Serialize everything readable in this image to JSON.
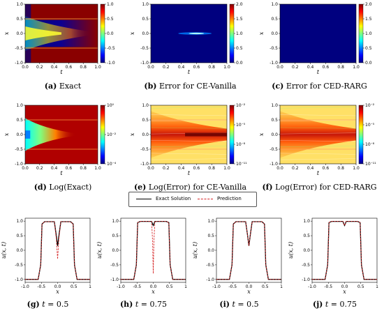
{
  "colormaps": {
    "jet": [
      "#00007f",
      "#0000ff",
      "#007fff",
      "#00ffff",
      "#7fff7f",
      "#ffff00",
      "#ff7f00",
      "#ff0000",
      "#7f0000"
    ],
    "error_low": "#3b0f70",
    "bg_dark_red": "#a00000"
  },
  "panels": [
    {
      "id": "a",
      "caption_letter": "(a)",
      "caption_text": "Exact",
      "cbar_ticks": [
        "1.0",
        "0.5",
        "0.0",
        "-0.5",
        "-1.0"
      ]
    },
    {
      "id": "b",
      "caption_letter": "(b)",
      "caption_text": "Error for CE-Vanilla",
      "cbar_ticks": [
        "2.0",
        "1.5",
        "1.0",
        "0.5",
        "0.0"
      ]
    },
    {
      "id": "c",
      "caption_letter": "(c)",
      "caption_text": "Error for CED-RARG",
      "cbar_ticks": [
        "2.0",
        "1.5",
        "1.0",
        "0.5",
        "0.0"
      ]
    },
    {
      "id": "d",
      "caption_letter": "(d)",
      "caption_text": "Log(Exact)",
      "cbar_ticks": [
        "10⁰",
        "10⁻²",
        "10⁻⁴"
      ]
    },
    {
      "id": "e",
      "caption_letter": "(e)",
      "caption_text": "Log(Error) for CE-Vanilla",
      "cbar_ticks": [
        "10⁻²",
        "10⁻⁵",
        "10⁻⁸",
        "10⁻¹¹"
      ]
    },
    {
      "id": "f",
      "caption_letter": "(f)",
      "caption_text": "Log(Error) for CED-RARG",
      "cbar_ticks": [
        "10⁻²",
        "10⁻⁵",
        "10⁻⁸",
        "10⁻¹¹"
      ]
    }
  ],
  "heat_axes": {
    "xlabel": "t",
    "ylabel": "x",
    "xticks": [
      "0.0",
      "0.2",
      "0.4",
      "0.6",
      "0.8",
      "1.0"
    ],
    "yticks": [
      "1.0",
      "0.5",
      "0.0",
      "-0.5",
      "-1.0"
    ]
  },
  "legend": {
    "exact": "Exact Solution",
    "prediction": "Prediction",
    "exact_color": "#000000",
    "pred_color": "#d62728"
  },
  "line_axes": {
    "xlabel": "x",
    "ylabel": "u(x, t)",
    "xticks": [
      "-1.0",
      "-0.5",
      "0.0",
      "0.5",
      "1"
    ],
    "yticks": [
      "1.0",
      "0.5",
      "0.0",
      "-0.5",
      "-1.0"
    ]
  },
  "chart_data": [
    {
      "type": "line",
      "caption": "(g) t = 0.5",
      "xlim": [
        -1,
        1
      ],
      "ylim": [
        -1.1,
        1.1
      ],
      "series": [
        {
          "name": "Exact Solution",
          "x": [
            -1,
            -0.6,
            -0.52,
            -0.48,
            -0.4,
            -0.1,
            -0.04,
            0,
            0.04,
            0.1,
            0.4,
            0.48,
            0.52,
            0.6,
            1
          ],
          "values": [
            -1,
            -1,
            -0.5,
            0.9,
            0.98,
            0.98,
            0.5,
            0.15,
            0.5,
            0.98,
            0.98,
            0.9,
            -0.5,
            -1,
            -1
          ]
        },
        {
          "name": "Prediction",
          "x": [
            -1,
            -0.6,
            -0.52,
            -0.48,
            -0.4,
            -0.1,
            -0.04,
            0,
            0.04,
            0.1,
            0.4,
            0.48,
            0.52,
            0.6,
            1
          ],
          "values": [
            -1,
            -1,
            -0.5,
            0.9,
            0.98,
            0.98,
            0.4,
            -0.3,
            0.4,
            0.98,
            0.98,
            0.9,
            -0.5,
            -1,
            -1
          ]
        }
      ]
    },
    {
      "type": "line",
      "caption": "(h) t = 0.75",
      "xlim": [
        -1,
        1
      ],
      "ylim": [
        -1.1,
        1.1
      ],
      "series": [
        {
          "name": "Exact Solution",
          "x": [
            -1,
            -0.6,
            -0.52,
            -0.48,
            -0.4,
            -0.05,
            -0.02,
            0,
            0.02,
            0.05,
            0.4,
            0.48,
            0.52,
            0.6,
            1
          ],
          "values": [
            -1,
            -1,
            -0.5,
            0.95,
            0.99,
            0.99,
            0.9,
            0.85,
            0.9,
            0.99,
            0.99,
            0.95,
            -0.5,
            -1,
            -1
          ]
        },
        {
          "name": "Prediction",
          "x": [
            -1,
            -0.6,
            -0.52,
            -0.48,
            -0.4,
            -0.05,
            -0.02,
            0,
            0.02,
            0.05,
            0.4,
            0.48,
            0.52,
            0.6,
            1
          ],
          "values": [
            -1,
            -1,
            -0.5,
            0.95,
            0.99,
            0.99,
            0.3,
            -0.8,
            0.3,
            0.99,
            0.99,
            0.95,
            -0.5,
            -1,
            -1
          ]
        }
      ]
    },
    {
      "type": "line",
      "caption": "(i) t = 0.5",
      "xlim": [
        -1,
        1
      ],
      "ylim": [
        -1.1,
        1.1
      ],
      "series": [
        {
          "name": "Exact Solution",
          "x": [
            -1,
            -0.6,
            -0.52,
            -0.48,
            -0.4,
            -0.1,
            -0.04,
            0,
            0.04,
            0.1,
            0.4,
            0.48,
            0.52,
            0.6,
            1
          ],
          "values": [
            -1,
            -1,
            -0.5,
            0.9,
            0.98,
            0.98,
            0.5,
            0.15,
            0.5,
            0.98,
            0.98,
            0.9,
            -0.5,
            -1,
            -1
          ]
        },
        {
          "name": "Prediction",
          "x": [
            -1,
            -0.6,
            -0.52,
            -0.48,
            -0.4,
            -0.1,
            -0.04,
            0,
            0.04,
            0.1,
            0.4,
            0.48,
            0.52,
            0.6,
            1
          ],
          "values": [
            -1,
            -1,
            -0.5,
            0.9,
            0.98,
            0.98,
            0.5,
            0.15,
            0.5,
            0.98,
            0.98,
            0.9,
            -0.5,
            -1,
            -1
          ]
        }
      ]
    },
    {
      "type": "line",
      "caption": "(j) t = 0.75",
      "xlim": [
        -1,
        1
      ],
      "ylim": [
        -1.1,
        1.1
      ],
      "series": [
        {
          "name": "Exact Solution",
          "x": [
            -1,
            -0.6,
            -0.52,
            -0.48,
            -0.4,
            -0.05,
            -0.02,
            0,
            0.02,
            0.05,
            0.4,
            0.48,
            0.52,
            0.6,
            1
          ],
          "values": [
            -1,
            -1,
            -0.5,
            0.95,
            0.99,
            0.99,
            0.9,
            0.85,
            0.9,
            0.99,
            0.99,
            0.95,
            -0.5,
            -1,
            -1
          ]
        },
        {
          "name": "Prediction",
          "x": [
            -1,
            -0.6,
            -0.52,
            -0.48,
            -0.4,
            -0.05,
            -0.02,
            0,
            0.02,
            0.05,
            0.4,
            0.48,
            0.52,
            0.6,
            1
          ],
          "values": [
            -1,
            -1,
            -0.5,
            0.95,
            0.99,
            0.99,
            0.9,
            0.85,
            0.9,
            0.99,
            0.99,
            0.95,
            -0.5,
            -1,
            -1
          ]
        }
      ]
    }
  ],
  "line_captions": [
    {
      "letter": "(g)",
      "t": "t",
      "eq": " = 0.5"
    },
    {
      "letter": "(h)",
      "t": "t",
      "eq": " = 0.75"
    },
    {
      "letter": "(i)",
      "t": "t",
      "eq": " = 0.5"
    },
    {
      "letter": "(j)",
      "t": "t",
      "eq": " = 0.75"
    }
  ]
}
